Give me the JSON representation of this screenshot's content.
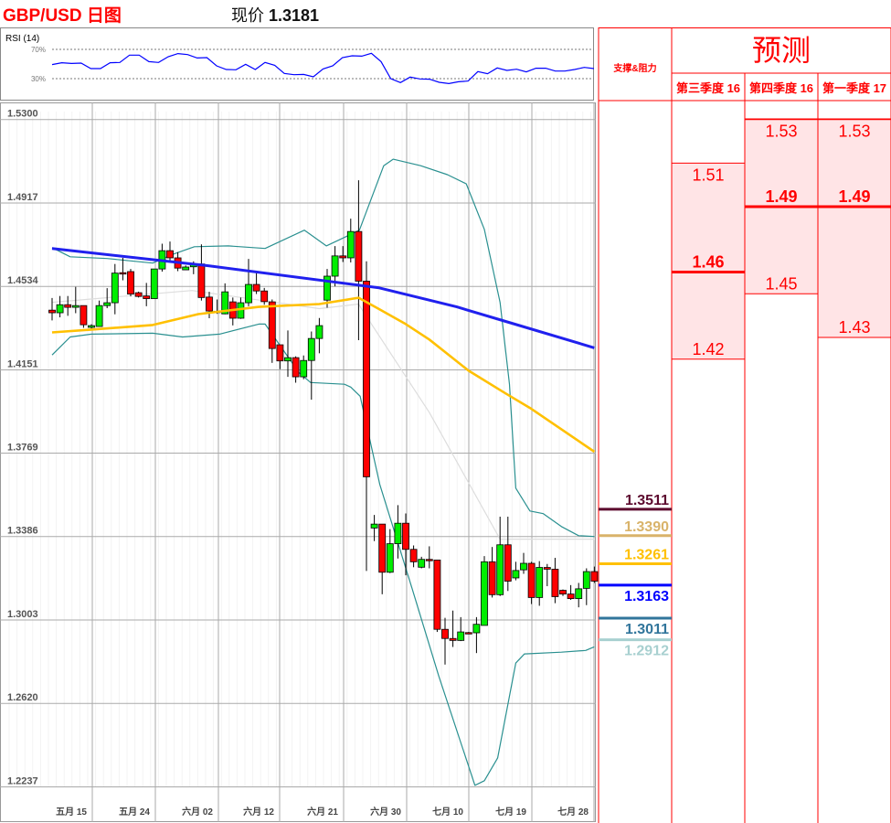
{
  "header": {
    "title": "GBP/USD 日图",
    "price_label": "现价",
    "price_value": "1.3181",
    "title_color": "#ff0000"
  },
  "rsi": {
    "label": "RSI (14)",
    "levels": [
      "70%",
      "30%"
    ],
    "level_values": [
      70,
      30
    ],
    "line_color": "#0000ff",
    "values": [
      49.2,
      51.7,
      50.8,
      51.3,
      43.8,
      43.8,
      51.7,
      52.1,
      62.1,
      62.1,
      53.3,
      52.1,
      60,
      64.2,
      62.9,
      58.3,
      58.8,
      47.5,
      42.5,
      42.1,
      49.6,
      42.5,
      52.1,
      48.3,
      37.1,
      35.4,
      35.8,
      32.5,
      43.3,
      47.5,
      58.8,
      61.3,
      60.8,
      64.6,
      53.3,
      30,
      24.6,
      32.1,
      29.6,
      29.2,
      25,
      23.3,
      25.8,
      26.7,
      39.6,
      36.7,
      44.6,
      41.3,
      42.9,
      39.2,
      44.2,
      44.2,
      40.4,
      40.4,
      42.5,
      45.4,
      43.8
    ]
  },
  "chart_data": {
    "type": "candlestick",
    "y_ticks": [
      "1.5300",
      "1.4917",
      "1.4534",
      "1.4151",
      "1.3769",
      "1.3386",
      "1.3003",
      "1.2620",
      "1.2237"
    ],
    "ylim": [
      1.2237,
      1.53
    ],
    "x_ticks": [
      "五月 15",
      "五月 24",
      "六月 02",
      "六月 12",
      "六月 21",
      "六月 30",
      "七月 10",
      "七月 19",
      "七月 28"
    ],
    "grid": true,
    "colors": {
      "up": "#00ee00",
      "down": "#ff0000",
      "ma_slow": "#2020ee",
      "ma_fast": "#ffc000",
      "ma_thin": "#dddddd",
      "bollinger": "#2a9090"
    },
    "candles_ohlc": [
      [
        1.4425,
        1.4481,
        1.4378,
        1.4413
      ],
      [
        1.4413,
        1.449,
        1.4392,
        1.445
      ],
      [
        1.445,
        1.449,
        1.4399,
        1.4438
      ],
      [
        1.4438,
        1.4532,
        1.4411,
        1.4446
      ],
      [
        1.4446,
        1.4446,
        1.4344,
        1.4358
      ],
      [
        1.4346,
        1.436,
        1.434,
        1.4354
      ],
      [
        1.435,
        1.4469,
        1.435,
        1.4446
      ],
      [
        1.4446,
        1.4526,
        1.4434,
        1.4459
      ],
      [
        1.4459,
        1.4637,
        1.4406,
        1.4595
      ],
      [
        1.4597,
        1.4665,
        1.4562,
        1.4593
      ],
      [
        1.4602,
        1.4614,
        1.4488,
        1.4499
      ],
      [
        1.4505,
        1.451,
        1.4483,
        1.4488
      ],
      [
        1.449,
        1.455,
        1.4443,
        1.4478
      ],
      [
        1.4478,
        1.4614,
        1.4478,
        1.4614
      ],
      [
        1.4614,
        1.473,
        1.4602,
        1.4698
      ],
      [
        1.4698,
        1.474,
        1.4646,
        1.4665
      ],
      [
        1.4665,
        1.4691,
        1.4604,
        1.4618
      ],
      [
        1.461,
        1.463,
        1.461,
        1.4623
      ],
      [
        1.4624,
        1.4649,
        1.459,
        1.4637
      ],
      [
        1.4637,
        1.4727,
        1.4469,
        1.4483
      ],
      [
        1.4485,
        1.4509,
        1.4388,
        1.4421
      ],
      [
        1.4415,
        1.4474,
        1.4408,
        1.442
      ],
      [
        1.4408,
        1.4548,
        1.4406,
        1.4509
      ],
      [
        1.4463,
        1.4483,
        1.4355,
        1.4388
      ],
      [
        1.4388,
        1.4483,
        1.4385,
        1.4459
      ],
      [
        1.4459,
        1.466,
        1.4443,
        1.4543
      ],
      [
        1.4543,
        1.4595,
        1.4499,
        1.4513
      ],
      [
        1.4513,
        1.4527,
        1.445,
        1.4464
      ],
      [
        1.4463,
        1.4474,
        1.4183,
        1.4249
      ],
      [
        1.4266,
        1.4266,
        1.4154,
        1.4192
      ],
      [
        1.4192,
        1.4332,
        1.4119,
        1.4207
      ],
      [
        1.4207,
        1.4213,
        1.4092,
        1.4119
      ],
      [
        1.4119,
        1.4217,
        1.4108,
        1.4194
      ],
      [
        1.4194,
        1.4327,
        1.4014,
        1.4295
      ],
      [
        1.4295,
        1.4389,
        1.4227,
        1.4354
      ],
      [
        1.4471,
        1.4614,
        1.4436,
        1.4581
      ],
      [
        1.4581,
        1.4719,
        1.4534,
        1.4674
      ],
      [
        1.4674,
        1.4719,
        1.4646,
        1.4665
      ],
      [
        1.4665,
        1.4845,
        1.4644,
        1.4786
      ],
      [
        1.4786,
        1.5021,
        1.4287,
        1.4558
      ],
      [
        1.4558,
        1.4649,
        1.3228,
        1.366
      ],
      [
        1.3425,
        1.3485,
        1.3365,
        1.3443
      ],
      [
        1.3443,
        1.3443,
        1.3121,
        1.3222
      ],
      [
        1.3222,
        1.342,
        1.3218,
        1.3353
      ],
      [
        1.3353,
        1.353,
        1.3285,
        1.3447
      ],
      [
        1.3447,
        1.3492,
        1.3208,
        1.3327
      ],
      [
        1.3327,
        1.3345,
        1.3245,
        1.327
      ],
      [
        1.3245,
        1.3293,
        1.324,
        1.3281
      ],
      [
        1.3281,
        1.3341,
        1.324,
        1.3276
      ],
      [
        1.3278,
        1.3278,
        1.2948,
        1.296
      ],
      [
        1.296,
        1.3013,
        1.2798,
        1.2918
      ],
      [
        1.2918,
        1.3046,
        1.2879,
        1.2909
      ],
      [
        1.2909,
        1.3016,
        1.2906,
        1.2948
      ],
      [
        1.2945,
        1.2948,
        1.2938,
        1.2941
      ],
      [
        1.2944,
        1.3016,
        1.2851,
        1.2983
      ],
      [
        1.2978,
        1.3296,
        1.2978,
        1.327
      ],
      [
        1.327,
        1.3338,
        1.3106,
        1.3119
      ],
      [
        1.3119,
        1.3477,
        1.3113,
        1.3348
      ],
      [
        1.3348,
        1.3477,
        1.3136,
        1.3181
      ],
      [
        1.3196,
        1.327,
        1.3185,
        1.323
      ],
      [
        1.3233,
        1.3311,
        1.3215,
        1.3263
      ],
      [
        1.3263,
        1.327,
        1.3076,
        1.3106
      ],
      [
        1.3106,
        1.3273,
        1.3068,
        1.3244
      ],
      [
        1.3244,
        1.326,
        1.3158,
        1.3236
      ],
      [
        1.3236,
        1.3288,
        1.308,
        1.311
      ],
      [
        1.3139,
        1.3143,
        1.3113,
        1.3122
      ],
      [
        1.3122,
        1.3163,
        1.3095,
        1.3101
      ],
      [
        1.3101,
        1.3173,
        1.3061,
        1.3146
      ],
      [
        1.3148,
        1.324,
        1.3071,
        1.3225
      ],
      [
        1.3225,
        1.3248,
        1.3173,
        1.3181
      ]
    ],
    "overlays": [
      {
        "key": "ma_slow",
        "points": [
          [
            0,
            1.4708
          ],
          [
            20,
            1.4628
          ],
          [
            41.5,
            1.4528
          ],
          [
            51.5,
            1.444
          ],
          [
            58.5,
            1.4365
          ],
          [
            69,
            1.4252
          ]
        ]
      },
      {
        "key": "ma_fast",
        "points": [
          [
            0,
            1.4323
          ],
          [
            5,
            1.4336
          ],
          [
            12.8,
            1.4357
          ],
          [
            18.6,
            1.4407
          ],
          [
            26.3,
            1.444
          ],
          [
            34,
            1.4453
          ],
          [
            39,
            1.4482
          ],
          [
            41.5,
            1.4432
          ],
          [
            45,
            1.4361
          ],
          [
            48,
            1.429
          ],
          [
            53,
            1.4147
          ],
          [
            57.7,
            1.4043
          ],
          [
            60.8,
            1.3976
          ],
          [
            69,
            1.3775
          ]
        ]
      },
      {
        "key": "ma_thin",
        "points": [
          [
            0,
            1.4461
          ],
          [
            17.8,
            1.4515
          ],
          [
            34,
            1.4432
          ],
          [
            39,
            1.4453
          ],
          [
            39.5,
            1.4424
          ],
          [
            48,
            1.3955
          ],
          [
            57,
            1.3374
          ],
          [
            69,
            1.3374
          ]
        ]
      },
      {
        "key": "bollinger_upper",
        "points": [
          [
            0,
            1.4712
          ],
          [
            2.3,
            1.467
          ],
          [
            7,
            1.4662
          ],
          [
            12.8,
            1.4641
          ],
          [
            15.5,
            1.4683
          ],
          [
            18.1,
            1.4716
          ],
          [
            22.4,
            1.472
          ],
          [
            27.1,
            1.4708
          ],
          [
            32.1,
            1.4792
          ],
          [
            34.9,
            1.472
          ],
          [
            37.6,
            1.4766
          ],
          [
            39.1,
            1.4792
          ],
          [
            42.2,
            1.5088
          ],
          [
            43.4,
            1.5118
          ],
          [
            46.9,
            1.5088
          ],
          [
            50.3,
            1.5047
          ],
          [
            52.7,
            1.5005
          ],
          [
            55,
            1.4796
          ],
          [
            57,
            1.4461
          ],
          [
            58.2,
            1.4085
          ],
          [
            59,
            1.3608
          ],
          [
            60.8,
            1.3503
          ],
          [
            62.5,
            1.3491
          ],
          [
            64.8,
            1.3432
          ],
          [
            67,
            1.339
          ],
          [
            69,
            1.3386
          ]
        ]
      },
      {
        "key": "bollinger_lower",
        "points": [
          [
            0,
            1.4219
          ],
          [
            2.3,
            1.4302
          ],
          [
            5,
            1.4315
          ],
          [
            12.8,
            1.4319
          ],
          [
            16.6,
            1.4302
          ],
          [
            21.3,
            1.4315
          ],
          [
            26.3,
            1.4361
          ],
          [
            27.1,
            1.4361
          ],
          [
            31.4,
            1.4139
          ],
          [
            32.9,
            1.4093
          ],
          [
            37.2,
            1.4085
          ],
          [
            38,
            1.4072
          ],
          [
            39.2,
            1.403
          ],
          [
            41.7,
            1.3625
          ],
          [
            45.8,
            1.3148
          ],
          [
            49.2,
            1.2746
          ],
          [
            53.8,
            1.2244
          ],
          [
            55,
            1.2265
          ],
          [
            56.7,
            1.237
          ],
          [
            59,
            1.2805
          ],
          [
            60.1,
            1.2847
          ],
          [
            64.8,
            1.2855
          ],
          [
            67.9,
            1.2863
          ],
          [
            69,
            1.288
          ]
        ]
      }
    ]
  },
  "forecast": {
    "title": "预测",
    "sr_header": "支撑&阻力",
    "columns": [
      {
        "label": "第三季度 16",
        "high": "1.51",
        "mid": "1.46",
        "low": "1.42"
      },
      {
        "label": "第四季度 16",
        "high": "1.53",
        "mid": "1.49",
        "low": "1.45"
      },
      {
        "label": "第一季度 17",
        "high": "1.53",
        "mid": "1.49",
        "low": "1.43"
      }
    ],
    "levels": [
      {
        "value": "1.3511",
        "color": "#5c0a2e",
        "pos": "above"
      },
      {
        "value": "1.3390",
        "color": "#d9b36a",
        "pos": "above"
      },
      {
        "value": "1.3261",
        "color": "#ffc000",
        "pos": "above"
      },
      {
        "value": "1.3163",
        "color": "#0000ff",
        "pos": "below"
      },
      {
        "value": "1.3011",
        "color": "#31759b",
        "pos": "below"
      },
      {
        "value": "1.2912",
        "color": "#a8d0d0",
        "pos": "below"
      }
    ],
    "border_color": "#ff0000",
    "band_fill": "#ffe4e6"
  }
}
